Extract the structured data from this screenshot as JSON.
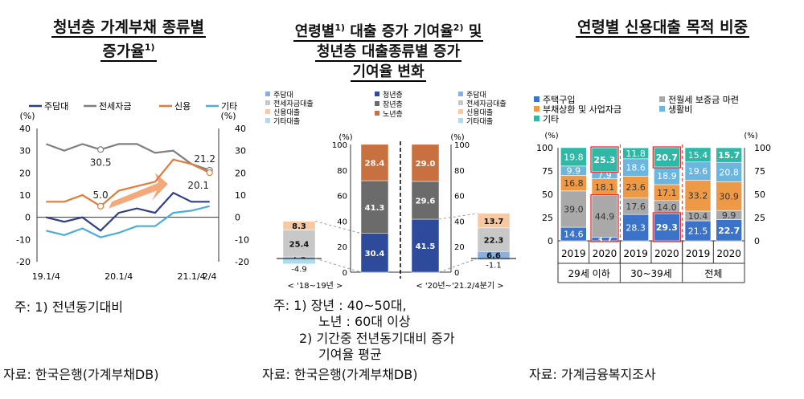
{
  "panel1": {
    "title_line1": "청년층 가계부채 종류별",
    "title_line2": "증가율",
    "title_sup": "1)",
    "note": "주: 1) 전년동기대비",
    "source": "자료: 한국은행(가계부채DB)"
  },
  "panel2": {
    "title_line1": "연령별",
    "title_sup1": "1)",
    "title_line1b": " 대출 증가 기여율",
    "title_sup2": "2)",
    "title_line1c": " 및",
    "title_line2": "청년층 대출종류별 증가",
    "title_line3": "기여율 변화",
    "note_l1": "주: 1) 장년 : 40~50대,",
    "note_l2": "노년 : 60대 이상",
    "note_l3": "2) 기간중 전년동기대비 증가",
    "note_l4": "기여율 평균",
    "source": "자료: 한국은행(가계부채DB)"
  },
  "panel3": {
    "title": "연령별 신용대출 목적 비중",
    "source": "자료: 가계금융복지조사"
  },
  "chart_data": [
    {
      "type": "line",
      "title": "청년층 가계부채 종류별 증가율",
      "y_unit_left": "(%)",
      "y_unit_right": "(%)",
      "ylim": [
        -20,
        40
      ],
      "yticks": [
        -20,
        -10,
        0,
        10,
        20,
        30,
        40
      ],
      "xtick_labels": [
        "19.1/4",
        "20.1/4",
        "21.1/4",
        "2/4"
      ],
      "xtick_index": [
        0,
        4,
        8,
        9
      ],
      "legend": [
        "주담대",
        "전세자금",
        "신용",
        "기타"
      ],
      "colors": [
        "#2e3f86",
        "#7f7f7f",
        "#e07b3a",
        "#4aaed8"
      ],
      "series": [
        {
          "name": "주담대",
          "values": [
            0,
            -2,
            0,
            -6,
            2,
            4,
            2,
            11,
            7,
            7
          ]
        },
        {
          "name": "전세자금",
          "values": [
            33,
            30,
            33,
            30.5,
            33,
            33,
            29,
            30,
            24,
            21.2
          ]
        },
        {
          "name": "신용",
          "values": [
            7,
            7,
            10,
            5.0,
            12,
            14,
            16,
            26,
            24,
            20.1
          ]
        },
        {
          "name": "기타",
          "values": [
            -6,
            -8,
            -5,
            -9,
            -7,
            -4,
            -4,
            2,
            3,
            5
          ]
        }
      ],
      "annotations": [
        {
          "text": "30.5",
          "series": "전세자금",
          "index": 3
        },
        {
          "text": "5.0",
          "series": "신용",
          "index": 3
        },
        {
          "text": "21.2",
          "series": "전세자금",
          "index": 9
        },
        {
          "text": "20.1",
          "series": "신용",
          "index": 9
        }
      ]
    },
    {
      "type": "bar",
      "title": "연령별 대출 증가 기여율 및 청년층 대출종류별 증가 기여율 변화",
      "y_unit": "(%)",
      "ylim": [
        0,
        100
      ],
      "yticks": [
        0,
        20,
        40,
        60,
        80,
        100
      ],
      "legend_left": [
        "주담대",
        "전세자금대출",
        "신용대출",
        "기타대출"
      ],
      "legend_mid": [
        "청년층",
        "장년층",
        "노년층"
      ],
      "legend_right": [
        "주담대",
        "전세자금대출",
        "신용대출",
        "기타대출"
      ],
      "age_colors": [
        "#2d4b9a",
        "#6b6b6b",
        "#c8703f"
      ],
      "type_colors": [
        "#8bb0dd",
        "#c8c8c8",
        "#f6c9a2",
        "#a9dcef"
      ],
      "period_labels": [
        "< '18~19년 >",
        "< '20년~'21.2/4분기 >"
      ],
      "young_by_type_1819": {
        "주담대": 1.5,
        "전세자금대출": 25.4,
        "신용대출": 8.3,
        "기타대출": -4.9
      },
      "age_1819": {
        "청년층": 30.4,
        "장년층": 41.3,
        "노년층": 28.4
      },
      "age_2021": {
        "청년층": 41.5,
        "장년층": 29.6,
        "노년층": 29.0
      },
      "young_by_type_2021": {
        "주담대": 6.6,
        "전세자금대출": 22.3,
        "신용대출": 13.7,
        "기타대출": -1.1
      }
    },
    {
      "type": "bar",
      "title": "연령별 신용대출 목적 비중",
      "y_unit_left": "(%)",
      "y_unit_right": "(%)",
      "ylim": [
        0,
        100
      ],
      "yticks": [
        0,
        25,
        50,
        75,
        100
      ],
      "legend": [
        "주택구입",
        "전월세 보증금 마련",
        "부채상환 및 사업자금",
        "생활비",
        "기타"
      ],
      "colors": [
        "#3a73c8",
        "#a9a9a9",
        "#ee9945",
        "#6ab6de",
        "#2fb8a5"
      ],
      "categories": [
        "2019",
        "2020",
        "2019",
        "2020",
        "2019",
        "2020"
      ],
      "groups": [
        "29세 이하",
        "30~39세",
        "전체"
      ],
      "series": [
        {
          "name": "주택구입",
          "values": [
            14.6,
            3.7,
            28.3,
            29.3,
            21.5,
            22.7
          ]
        },
        {
          "name": "전월세 보증금 마련",
          "values": [
            39.0,
            44.9,
            17.6,
            14.0,
            10.4,
            9.9
          ]
        },
        {
          "name": "부채상환 및 사업자금",
          "values": [
            16.8,
            18.1,
            23.6,
            17.1,
            33.2,
            30.9
          ]
        },
        {
          "name": "생활비",
          "values": [
            9.9,
            7.9,
            18.6,
            18.9,
            19.6,
            20.8
          ]
        },
        {
          "name": "기타",
          "values": [
            19.8,
            25.3,
            11.8,
            20.7,
            15.4,
            15.7
          ]
        }
      ]
    }
  ]
}
